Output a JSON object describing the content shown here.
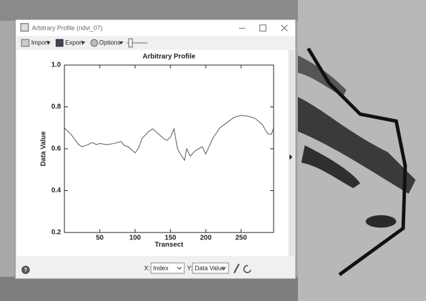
{
  "window": {
    "title": "Arbitrary Profile  (ndvi_07)"
  },
  "toolbar": {
    "import": "Import",
    "export": "Export",
    "options": "Options"
  },
  "chart_data": {
    "type": "line",
    "title": "Arbitrary Profile",
    "x_label": "Transect",
    "y_label": "Data Value",
    "x": [
      0,
      10,
      20,
      25,
      30,
      40,
      45,
      50,
      60,
      70,
      80,
      85,
      90,
      100,
      105,
      110,
      120,
      125,
      130,
      140,
      145,
      150,
      155,
      160,
      165,
      170,
      173,
      178,
      185,
      195,
      200,
      210,
      220,
      230,
      240,
      250,
      260,
      270,
      280,
      288,
      293,
      296
    ],
    "values": [
      0.7,
      0.666,
      0.62,
      0.61,
      0.615,
      0.63,
      0.62,
      0.625,
      0.62,
      0.625,
      0.635,
      0.615,
      0.61,
      0.58,
      0.605,
      0.65,
      0.685,
      0.695,
      0.68,
      0.65,
      0.64,
      0.655,
      0.695,
      0.6,
      0.57,
      0.545,
      0.6,
      0.565,
      0.59,
      0.61,
      0.575,
      0.65,
      0.7,
      0.725,
      0.75,
      0.76,
      0.755,
      0.745,
      0.715,
      0.67,
      0.67,
      0.7
    ],
    "color": "#555555",
    "xlim": [
      0,
      296
    ],
    "xticks": [
      50,
      100,
      150,
      200,
      250
    ],
    "ylim": [
      0.2,
      1.0
    ],
    "yticks": [
      0.2,
      0.4,
      0.6,
      0.8,
      {
        "value": 1.0,
        "label": "1.0"
      }
    ]
  },
  "controls": {
    "help": "?",
    "x_label": "X:",
    "x_value": "Index",
    "y_label": "Y:",
    "y_value": "Data Value"
  }
}
